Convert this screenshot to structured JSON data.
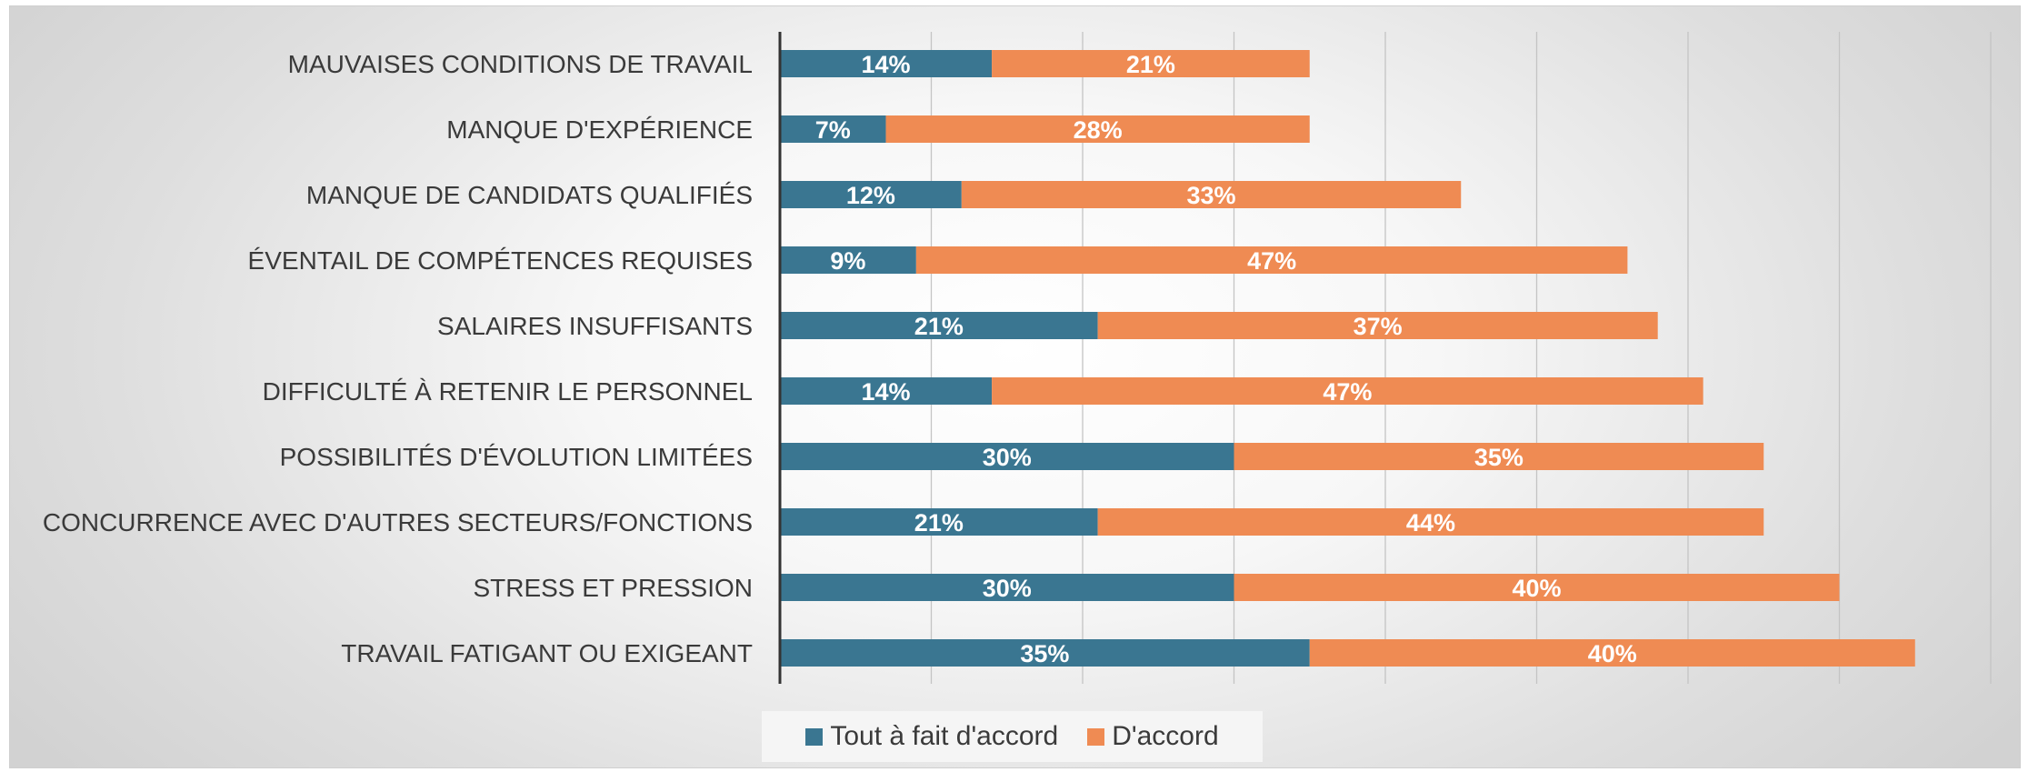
{
  "chart_data": {
    "type": "bar",
    "orientation": "horizontal",
    "stacked": true,
    "categories": [
      "MAUVAISES CONDITIONS DE TRAVAIL",
      "MANQUE D'EXPÉRIENCE",
      "MANQUE DE CANDIDATS QUALIFIÉS",
      "ÉVENTAIL DE COMPÉTENCES REQUISES",
      "SALAIRES INSUFFISANTS",
      "DIFFICULTÉ À RETENIR LE PERSONNEL",
      "POSSIBILITÉS D'ÉVOLUTION LIMITÉES",
      "CONCURRENCE AVEC D'AUTRES SECTEURS/FONCTIONS",
      "STRESS ET PRESSION",
      "TRAVAIL FATIGANT OU EXIGEANT"
    ],
    "series": [
      {
        "name": "Tout à fait d'accord",
        "color": "#3a7691",
        "values": [
          14,
          7,
          12,
          9,
          21,
          14,
          30,
          21,
          30,
          35
        ],
        "labels": [
          "14%",
          "7%",
          "12%",
          "9%",
          "21%",
          "14%",
          "30%",
          "21%",
          "30%",
          "35%"
        ]
      },
      {
        "name": "D'accord",
        "color": "#ef8b53",
        "values": [
          21,
          28,
          33,
          47,
          37,
          47,
          35,
          44,
          40,
          40
        ],
        "labels": [
          "21%",
          "28%",
          "33%",
          "47%",
          "37%",
          "47%",
          "35%",
          "44%",
          "40%",
          "40%"
        ]
      }
    ],
    "xlim": [
      0,
      80
    ],
    "grid": true,
    "legend": "bottom",
    "colors": {
      "axis": "#333333",
      "grid": "#c4c4c4"
    }
  }
}
